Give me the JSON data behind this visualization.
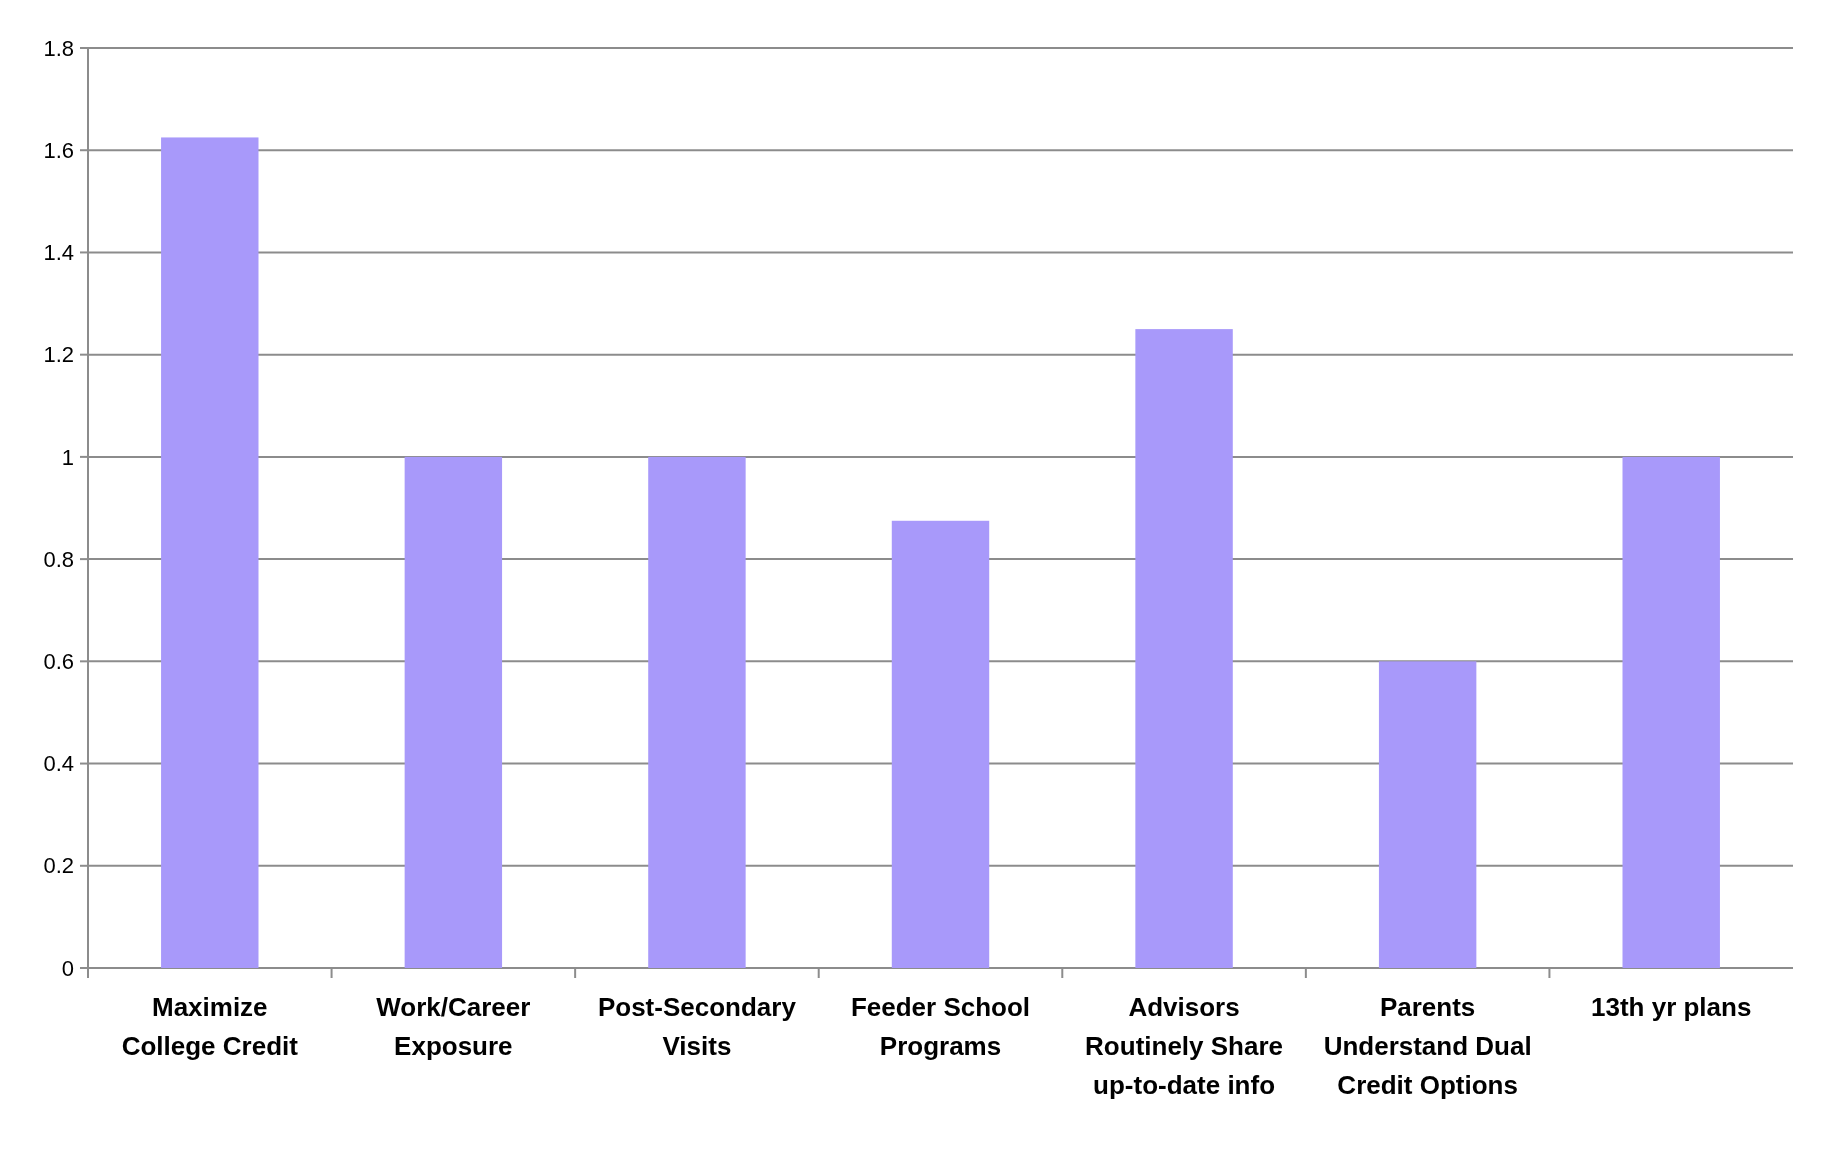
{
  "chart_data": {
    "type": "bar",
    "categories": [
      "Maximize College Credit",
      "Work/Career Exposure",
      "Post-Secondary Visits",
      "Feeder School Programs",
      "Advisors Routinely Share up-to-date info",
      "Parents Understand Dual Credit Options",
      "13th yr plans"
    ],
    "values": [
      1.625,
      1,
      1,
      0.875,
      1.25,
      0.6,
      1
    ],
    "color": "#a899fa",
    "ylim": [
      0,
      1.8
    ],
    "yticks": [
      0,
      0.2,
      0.4,
      0.6,
      0.8,
      1,
      1.2,
      1.4,
      1.6,
      1.8
    ],
    "grid": "y"
  }
}
